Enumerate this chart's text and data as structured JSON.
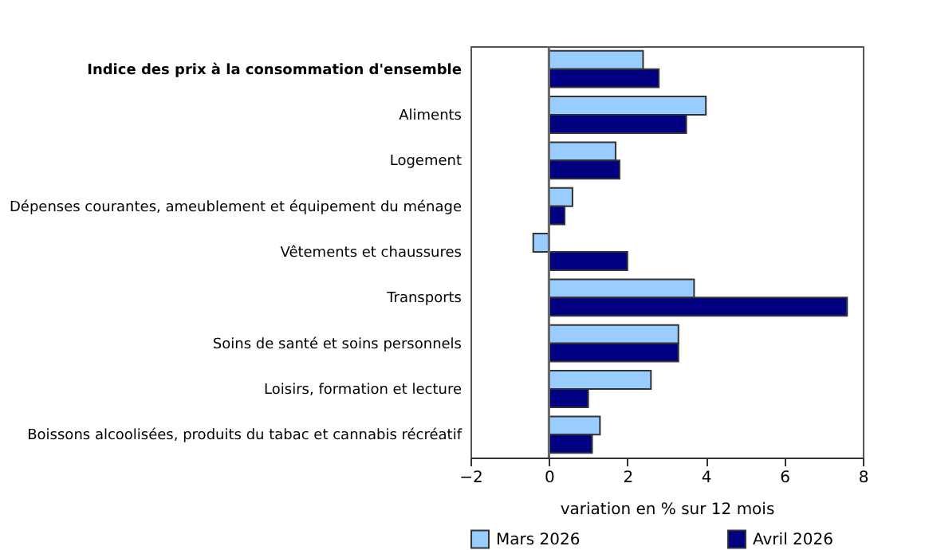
{
  "chart_data": {
    "type": "bar",
    "orientation": "horizontal",
    "xlabel": "variation en % sur 12 mois",
    "categories": [
      "Indice des prix à la consommation d'ensemble",
      "Aliments",
      "Logement",
      "Dépenses courantes, ameublement et équipement du ménage",
      "Vêtements et chaussures",
      "Transports",
      "Soins de santé et soins personnels",
      "Loisirs, formation et lecture",
      "Boissons alcoolisées, produits du tabac et cannabis récréatif"
    ],
    "series": [
      {
        "name": "Mars 2026",
        "color": "#99ccff",
        "values": [
          2.4,
          4.0,
          1.7,
          0.6,
          -0.4,
          3.7,
          3.3,
          2.6,
          1.3
        ]
      },
      {
        "name": "Avril 2026",
        "color": "#000080",
        "values": [
          2.8,
          3.5,
          1.8,
          0.4,
          2.0,
          7.6,
          3.3,
          1.0,
          1.1
        ]
      }
    ],
    "xlim": [
      -2,
      8
    ],
    "xticks": [
      -2,
      0,
      2,
      4,
      6,
      8
    ],
    "ref_lines": [
      {
        "axis": "x",
        "value": 0,
        "color": "#666666"
      }
    ],
    "grid": false,
    "legend": "bottom"
  }
}
